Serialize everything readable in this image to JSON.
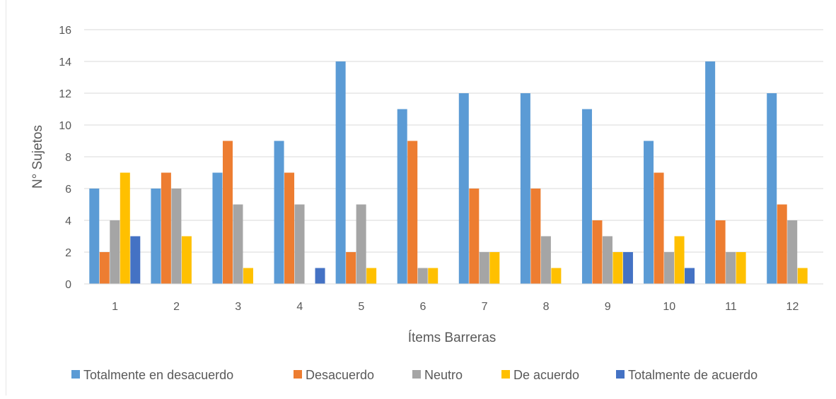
{
  "chart_data": {
    "type": "bar",
    "title": "",
    "xlabel": "Ítems Barreras",
    "ylabel": "N° Sujetos",
    "ylim": [
      0,
      16
    ],
    "yticks": [
      "0",
      "2",
      "4",
      "6",
      "8",
      "10",
      "12",
      "14",
      "16"
    ],
    "categories": [
      "1",
      "2",
      "3",
      "4",
      "5",
      "6",
      "7",
      "8",
      "9",
      "10",
      "11",
      "12"
    ],
    "grid": true,
    "legend_position": "bottom",
    "series": [
      {
        "name": "Totalmente en desacuerdo",
        "color": "#5B9BD5",
        "values": [
          6,
          6,
          7,
          9,
          14,
          11,
          12,
          12,
          11,
          9,
          14,
          12
        ]
      },
      {
        "name": "Desacuerdo",
        "color": "#ED7D31",
        "values": [
          2,
          7,
          9,
          7,
          2,
          9,
          6,
          6,
          4,
          7,
          4,
          5
        ]
      },
      {
        "name": "Neutro",
        "color": "#A5A5A5",
        "values": [
          4,
          6,
          5,
          5,
          5,
          1,
          2,
          3,
          3,
          2,
          2,
          4
        ]
      },
      {
        "name": "De acuerdo",
        "color": "#FFC000",
        "values": [
          7,
          3,
          1,
          0,
          1,
          1,
          2,
          1,
          2,
          3,
          2,
          1
        ]
      },
      {
        "name": "Totalmente de acuerdo",
        "color": "#4472C4",
        "values": [
          3,
          0,
          0,
          1,
          0,
          0,
          0,
          0,
          2,
          1,
          0,
          0
        ]
      }
    ]
  }
}
